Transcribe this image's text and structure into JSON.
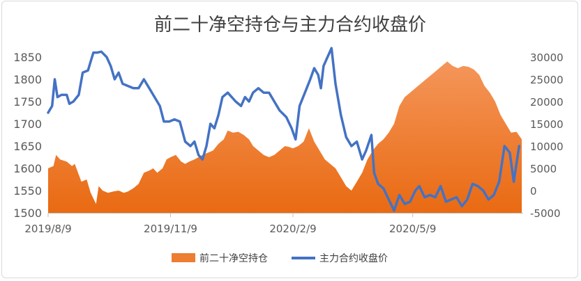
{
  "chart_data": {
    "type": "area+line",
    "title": "前二十净空持仓与主力合约收盘价",
    "x_tick_labels": [
      "2019/8/9",
      "2019/11/9",
      "2020/2/9",
      "2020/5/9"
    ],
    "left_axis": {
      "ylim": [
        1500,
        1850
      ],
      "ticks": [
        1500,
        1550,
        1600,
        1650,
        1700,
        1750,
        1800,
        1850
      ]
    },
    "right_axis": {
      "ylim": [
        -5000,
        30000
      ],
      "ticks": [
        -5000,
        0,
        5000,
        10000,
        15000,
        20000,
        25000,
        30000
      ]
    },
    "grid": false,
    "legend_position": "bottom",
    "legend": [
      "前二十净空持仓",
      "主力合约收盘价"
    ],
    "colors": {
      "area": "#ed7d31",
      "line": "#4472c4",
      "title": "#404040",
      "axis_text": "#595959"
    },
    "series": [
      {
        "name": "前二十净空持仓",
        "type": "area",
        "axis": "left",
        "points": [
          [
            "2019-08-09",
            1600
          ],
          [
            "2019-08-13",
            1605
          ],
          [
            "2019-08-15",
            1630
          ],
          [
            "2019-08-18",
            1620
          ],
          [
            "2019-08-23",
            1615
          ],
          [
            "2019-08-27",
            1605
          ],
          [
            "2019-08-29",
            1610
          ],
          [
            "2019-09-03",
            1570
          ],
          [
            "2019-09-07",
            1575
          ],
          [
            "2019-09-10",
            1545
          ],
          [
            "2019-09-14",
            1520
          ],
          [
            "2019-09-16",
            1560
          ],
          [
            "2019-09-19",
            1550
          ],
          [
            "2019-09-23",
            1545
          ],
          [
            "2019-09-27",
            1548
          ],
          [
            "2019-10-01",
            1550
          ],
          [
            "2019-10-05",
            1545
          ],
          [
            "2019-10-08",
            1548
          ],
          [
            "2019-10-12",
            1555
          ],
          [
            "2019-10-16",
            1565
          ],
          [
            "2019-10-20",
            1590
          ],
          [
            "2019-10-24",
            1595
          ],
          [
            "2019-10-27",
            1600
          ],
          [
            "2019-10-30",
            1590
          ],
          [
            "2019-11-03",
            1600
          ],
          [
            "2019-11-06",
            1620
          ],
          [
            "2019-11-09",
            1625
          ],
          [
            "2019-11-13",
            1630
          ],
          [
            "2019-11-17",
            1615
          ],
          [
            "2019-11-20",
            1610
          ],
          [
            "2019-11-23",
            1615
          ],
          [
            "2019-11-27",
            1620
          ],
          [
            "2019-11-30",
            1625
          ],
          [
            "2019-12-03",
            1630
          ],
          [
            "2019-12-07",
            1635
          ],
          [
            "2019-12-11",
            1640
          ],
          [
            "2019-12-15",
            1655
          ],
          [
            "2019-12-19",
            1665
          ],
          [
            "2019-12-22",
            1685
          ],
          [
            "2019-12-26",
            1680
          ],
          [
            "2019-12-30",
            1682
          ],
          [
            "2020-01-03",
            1675
          ],
          [
            "2020-01-07",
            1665
          ],
          [
            "2020-01-10",
            1650
          ],
          [
            "2020-01-14",
            1640
          ],
          [
            "2020-01-18",
            1630
          ],
          [
            "2020-01-22",
            1625
          ],
          [
            "2020-01-26",
            1630
          ],
          [
            "2020-01-30",
            1640
          ],
          [
            "2020-02-03",
            1650
          ],
          [
            "2020-02-06",
            1648
          ],
          [
            "2020-02-09",
            1645
          ],
          [
            "2020-02-13",
            1650
          ],
          [
            "2020-02-17",
            1660
          ],
          [
            "2020-02-21",
            1690
          ],
          [
            "2020-02-25",
            1660
          ],
          [
            "2020-02-29",
            1640
          ],
          [
            "2020-03-04",
            1620
          ],
          [
            "2020-03-08",
            1610
          ],
          [
            "2020-03-12",
            1600
          ],
          [
            "2020-03-16",
            1580
          ],
          [
            "2020-03-20",
            1560
          ],
          [
            "2020-03-24",
            1550
          ],
          [
            "2020-03-28",
            1570
          ],
          [
            "2020-04-01",
            1590
          ],
          [
            "2020-04-05",
            1620
          ],
          [
            "2020-04-09",
            1640
          ],
          [
            "2020-04-13",
            1655
          ],
          [
            "2020-04-17",
            1665
          ],
          [
            "2020-04-21",
            1680
          ],
          [
            "2020-04-25",
            1700
          ],
          [
            "2020-04-29",
            1740
          ],
          [
            "2020-05-03",
            1760
          ],
          [
            "2020-05-07",
            1770
          ],
          [
            "2020-05-11",
            1780
          ],
          [
            "2020-05-15",
            1790
          ],
          [
            "2020-05-19",
            1800
          ],
          [
            "2020-05-23",
            1810
          ],
          [
            "2020-05-27",
            1820
          ],
          [
            "2020-05-31",
            1830
          ],
          [
            "2020-06-04",
            1840
          ],
          [
            "2020-06-08",
            1830
          ],
          [
            "2020-06-12",
            1825
          ],
          [
            "2020-06-16",
            1830
          ],
          [
            "2020-06-20",
            1828
          ],
          [
            "2020-06-24",
            1822
          ],
          [
            "2020-06-28",
            1810
          ],
          [
            "2020-07-02",
            1785
          ],
          [
            "2020-07-06",
            1770
          ],
          [
            "2020-07-10",
            1750
          ],
          [
            "2020-07-14",
            1720
          ],
          [
            "2020-07-18",
            1700
          ],
          [
            "2020-07-22",
            1680
          ],
          [
            "2020-07-26",
            1682
          ],
          [
            "2020-07-30",
            1665
          ]
        ]
      },
      {
        "name": "主力合约收盘价",
        "type": "line",
        "axis": "right",
        "points": [
          [
            "2019-08-09",
            17500
          ],
          [
            "2019-08-12",
            19000
          ],
          [
            "2019-08-14",
            25000
          ],
          [
            "2019-08-16",
            21000
          ],
          [
            "2019-08-19",
            21500
          ],
          [
            "2019-08-23",
            21500
          ],
          [
            "2019-08-25",
            19500
          ],
          [
            "2019-08-28",
            20000
          ],
          [
            "2019-09-01",
            21500
          ],
          [
            "2019-09-04",
            26500
          ],
          [
            "2019-09-08",
            27000
          ],
          [
            "2019-09-10",
            29000
          ],
          [
            "2019-09-12",
            31000
          ],
          [
            "2019-09-15",
            31000
          ],
          [
            "2019-09-18",
            31200
          ],
          [
            "2019-09-22",
            30000
          ],
          [
            "2019-09-25",
            28000
          ],
          [
            "2019-09-28",
            25000
          ],
          [
            "2019-10-01",
            26500
          ],
          [
            "2019-10-04",
            24000
          ],
          [
            "2019-10-08",
            23500
          ],
          [
            "2019-10-12",
            23000
          ],
          [
            "2019-10-16",
            23000
          ],
          [
            "2019-10-20",
            25000
          ],
          [
            "2019-10-24",
            23000
          ],
          [
            "2019-10-28",
            21000
          ],
          [
            "2019-11-01",
            19000
          ],
          [
            "2019-11-04",
            15500
          ],
          [
            "2019-11-08",
            15500
          ],
          [
            "2019-11-12",
            16000
          ],
          [
            "2019-11-16",
            15500
          ],
          [
            "2019-11-20",
            11000
          ],
          [
            "2019-11-24",
            10000
          ],
          [
            "2019-11-27",
            11000
          ],
          [
            "2019-11-30",
            8000
          ],
          [
            "2019-12-03",
            7000
          ],
          [
            "2019-12-06",
            10000
          ],
          [
            "2019-12-09",
            15000
          ],
          [
            "2019-12-12",
            14000
          ],
          [
            "2019-12-15",
            17000
          ],
          [
            "2019-12-18",
            21000
          ],
          [
            "2019-12-22",
            22000
          ],
          [
            "2019-12-25",
            21000
          ],
          [
            "2019-12-28",
            20000
          ],
          [
            "2020-01-01",
            19000
          ],
          [
            "2020-01-04",
            21000
          ],
          [
            "2020-01-07",
            20000
          ],
          [
            "2020-01-10",
            22000
          ],
          [
            "2020-01-14",
            23000
          ],
          [
            "2020-01-18",
            22000
          ],
          [
            "2020-01-22",
            22000
          ],
          [
            "2020-01-26",
            20000
          ],
          [
            "2020-01-30",
            18000
          ],
          [
            "2020-02-04",
            16500
          ],
          [
            "2020-02-08",
            14000
          ],
          [
            "2020-02-11",
            11500
          ],
          [
            "2020-02-14",
            19000
          ],
          [
            "2020-02-18",
            22000
          ],
          [
            "2020-02-22",
            25000
          ],
          [
            "2020-02-25",
            27500
          ],
          [
            "2020-02-28",
            26000
          ],
          [
            "2020-03-01",
            23000
          ],
          [
            "2020-03-03",
            28000
          ],
          [
            "2020-03-06",
            30000
          ],
          [
            "2020-03-09",
            32000
          ],
          [
            "2020-03-12",
            24000
          ],
          [
            "2020-03-16",
            17000
          ],
          [
            "2020-03-20",
            12000
          ],
          [
            "2020-03-24",
            10000
          ],
          [
            "2020-03-28",
            11000
          ],
          [
            "2020-04-01",
            7000
          ],
          [
            "2020-04-04",
            9000
          ],
          [
            "2020-04-08",
            12500
          ],
          [
            "2020-04-10",
            4000
          ],
          [
            "2020-04-13",
            1500
          ],
          [
            "2020-04-17",
            500
          ],
          [
            "2020-04-21",
            -2000
          ],
          [
            "2020-04-25",
            -4500
          ],
          [
            "2020-04-29",
            -1000
          ],
          [
            "2020-05-03",
            -3000
          ],
          [
            "2020-05-07",
            -2500
          ],
          [
            "2020-05-11",
            0
          ],
          [
            "2020-05-14",
            1000
          ],
          [
            "2020-05-18",
            -1500
          ],
          [
            "2020-05-22",
            -1000
          ],
          [
            "2020-05-26",
            -1500
          ],
          [
            "2020-05-30",
            1000
          ],
          [
            "2020-06-03",
            -2500
          ],
          [
            "2020-06-07",
            -2000
          ],
          [
            "2020-06-11",
            -1500
          ],
          [
            "2020-06-15",
            -3500
          ],
          [
            "2020-06-19",
            -2000
          ],
          [
            "2020-06-23",
            1500
          ],
          [
            "2020-06-27",
            1000
          ],
          [
            "2020-07-01",
            0
          ],
          [
            "2020-07-05",
            -2000
          ],
          [
            "2020-07-09",
            -1000
          ],
          [
            "2020-07-13",
            2000
          ],
          [
            "2020-07-17",
            10000
          ],
          [
            "2020-07-21",
            8500
          ],
          [
            "2020-07-24",
            2000
          ],
          [
            "2020-07-28",
            10000
          ]
        ]
      }
    ]
  }
}
